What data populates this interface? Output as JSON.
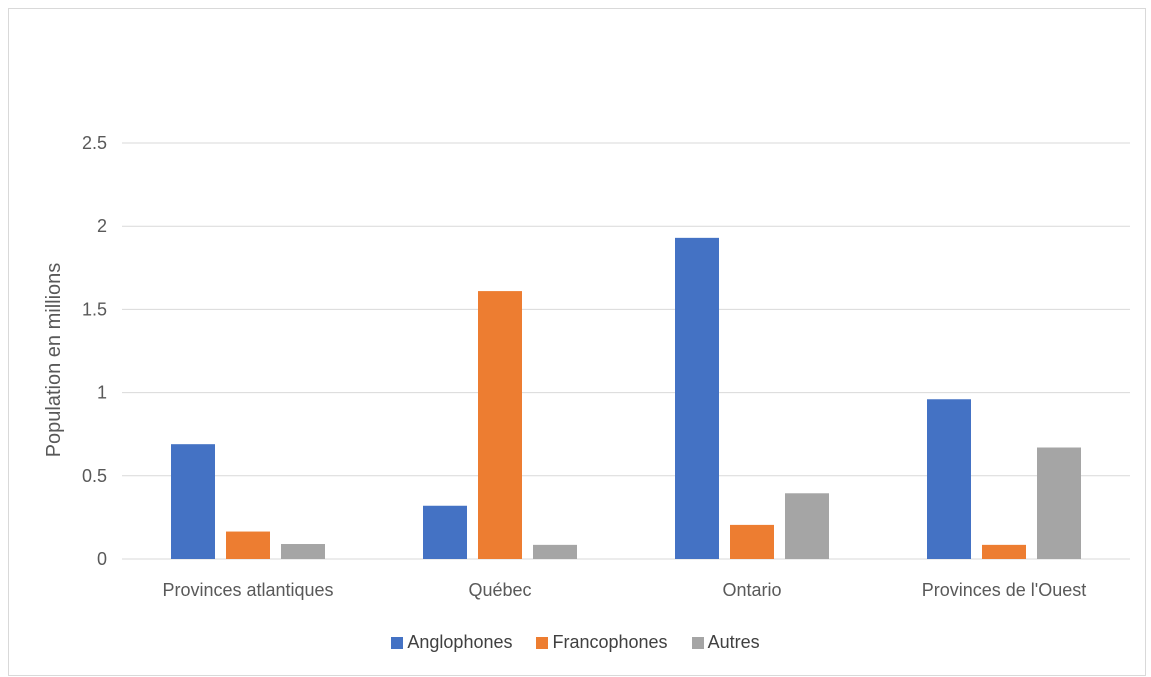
{
  "chart_data": {
    "type": "bar",
    "title": "",
    "xlabel": "",
    "ylabel": "Population en millions",
    "ylim": [
      0,
      2.5
    ],
    "yticks": [
      "0",
      "0.5",
      "1",
      "1.5",
      "2",
      "2.5"
    ],
    "grid": true,
    "legend_position": "bottom",
    "categories": [
      "Provinces atlantiques",
      "Québec",
      "Ontario",
      "Provinces de l'Ouest"
    ],
    "series": [
      {
        "name": "Anglophones",
        "color": "#4472c4",
        "values": [
          0.69,
          0.32,
          1.93,
          0.96
        ]
      },
      {
        "name": "Francophones",
        "color": "#ed7d31",
        "values": [
          0.165,
          1.61,
          0.205,
          0.085
        ]
      },
      {
        "name": "Autres",
        "color": "#a5a5a5",
        "values": [
          0.09,
          0.085,
          0.395,
          0.67
        ]
      }
    ]
  }
}
